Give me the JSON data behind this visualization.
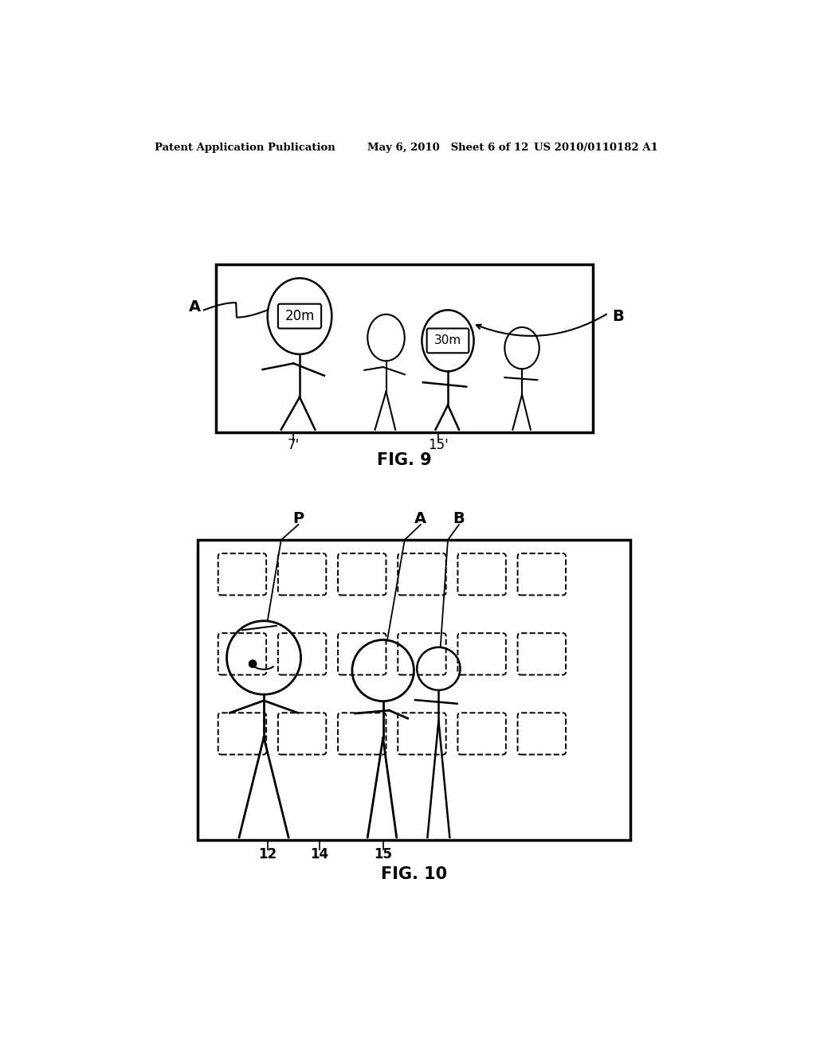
{
  "bg_color": "#ffffff",
  "header_left": "Patent Application Publication",
  "header_mid": "May 6, 2010   Sheet 6 of 12",
  "header_right": "US 2010/0110182 A1",
  "fig9_label": "FIG. 9",
  "fig10_label": "FIG. 10"
}
